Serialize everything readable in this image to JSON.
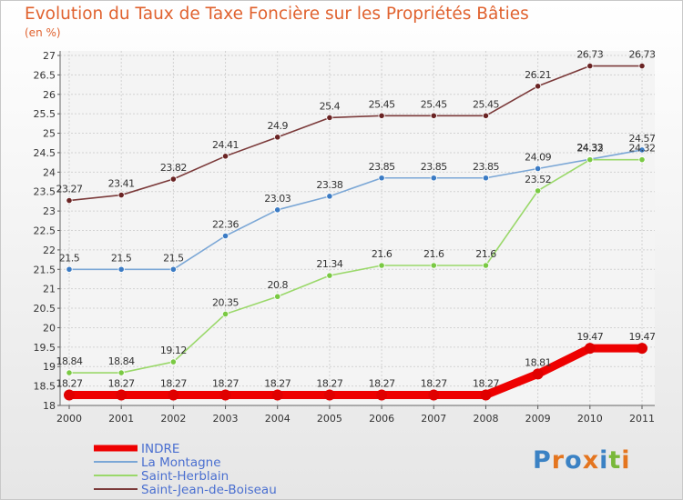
{
  "chart_data": {
    "type": "line",
    "title": "Evolution du Taux de Taxe Foncière sur les Propriétés Bâties",
    "ylabel": "(en %)",
    "xlabel": "",
    "x": [
      "2000",
      "2001",
      "2002",
      "2003",
      "2004",
      "2005",
      "2006",
      "2007",
      "2008",
      "2009",
      "2010",
      "2011"
    ],
    "ylim": [
      18,
      27
    ],
    "yticks": [
      "18",
      "18.5",
      "19",
      "19.5",
      "20",
      "20.5",
      "21",
      "21.5",
      "22",
      "22.5",
      "23",
      "23.5",
      "24",
      "24.5",
      "25",
      "25.5",
      "26",
      "26.5",
      "27"
    ],
    "grid": true,
    "legend_position": "bottom-left",
    "series": [
      {
        "name": "INDRE",
        "color": "#ee0000",
        "marker": "#e00000",
        "values": [
          18.27,
          18.27,
          18.27,
          18.27,
          18.27,
          18.27,
          18.27,
          18.27,
          18.27,
          18.81,
          19.47,
          19.47
        ],
        "labels": [
          "18.27",
          "18.27",
          "18.27",
          "18.27",
          "18.27",
          "18.27",
          "18.27",
          "18.27",
          "18.27",
          "18.81",
          "19.47",
          "19.47"
        ]
      },
      {
        "name": "La Montagne",
        "color": "#7ba7d6",
        "marker": "#3b7bc4",
        "values": [
          21.5,
          21.5,
          21.5,
          22.36,
          23.03,
          23.38,
          23.85,
          23.85,
          23.85,
          24.09,
          24.33,
          24.57
        ],
        "labels": [
          "21.5",
          "21.5",
          "21.5",
          "22.36",
          "23.03",
          "23.38",
          "23.85",
          "23.85",
          "23.85",
          "24.09",
          "24.33",
          "24.57"
        ]
      },
      {
        "name": "Saint-Herblain",
        "color": "#9ad86a",
        "marker": "#7ac943",
        "values": [
          18.84,
          18.84,
          19.12,
          20.35,
          20.8,
          21.34,
          21.6,
          21.6,
          21.6,
          23.52,
          24.32,
          24.32
        ],
        "labels": [
          "18.84",
          "18.84",
          "19.12",
          "20.35",
          "20.8",
          "21.34",
          "21.6",
          "21.6",
          "21.6",
          "23.52",
          "24.32",
          "24.32"
        ]
      },
      {
        "name": "Saint-Jean-de-Boiseau",
        "color": "#7b3a3a",
        "marker": "#6a2424",
        "values": [
          23.27,
          23.41,
          23.82,
          24.41,
          24.9,
          25.4,
          25.45,
          25.45,
          25.45,
          26.21,
          26.73,
          26.73
        ],
        "labels": [
          "23.27",
          "23.41",
          "23.82",
          "24.41",
          "24.9",
          "25.4",
          "25.45",
          "25.45",
          "25.45",
          "26.21",
          "26.73",
          "26.73"
        ]
      }
    ]
  },
  "logo": {
    "letters": [
      "P",
      "r",
      "o",
      "x",
      "i",
      "t",
      "i"
    ],
    "colors": [
      "#3b82c4",
      "#e4751f",
      "#3b82c4",
      "#e4751f",
      "#3b82c4",
      "#79b83a",
      "#e4751f"
    ]
  }
}
